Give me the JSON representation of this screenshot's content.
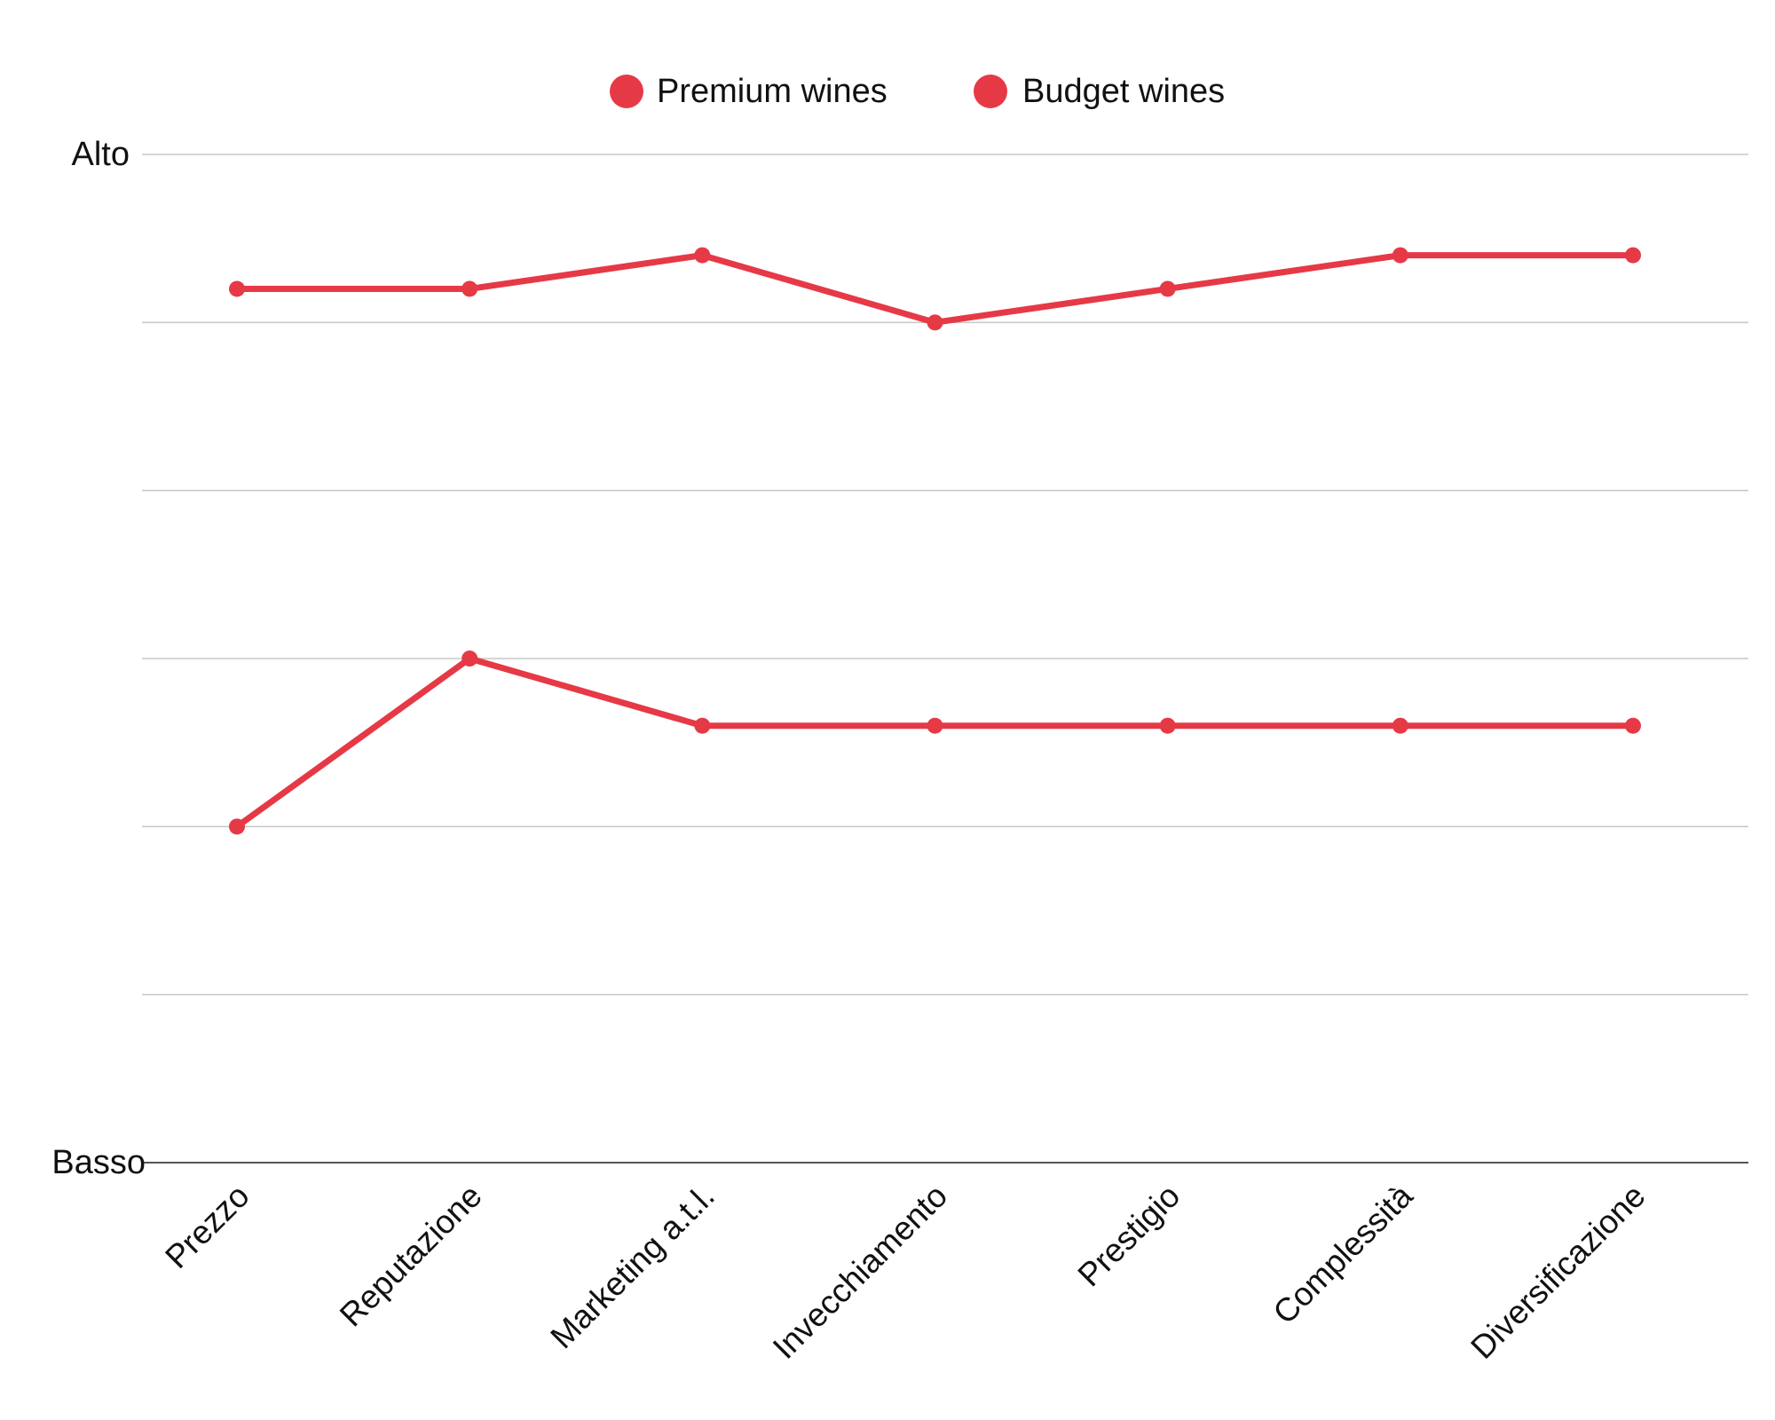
{
  "chart_data": {
    "type": "line",
    "title": "",
    "xlabel": "",
    "ylabel": "",
    "categories": [
      "Prezzo",
      "Reputazione",
      "Marketing a.t.l.",
      "Invecchiamento",
      "Prestigio",
      "Complessità",
      "Diversificazione"
    ],
    "ylim": [
      0,
      6
    ],
    "y_ticks": [
      0,
      1,
      2,
      3,
      4,
      5,
      6
    ],
    "y_tick_labels": {
      "top": "Alto",
      "bottom": "Basso"
    },
    "grid": true,
    "legend_position": "top-center",
    "series": [
      {
        "name": "Premium wines",
        "color": "#e63946",
        "values": [
          5.2,
          5.2,
          5.4,
          5.0,
          5.2,
          5.4,
          5.4
        ]
      },
      {
        "name": "Budget wines",
        "color": "#e63946",
        "values": [
          2.0,
          3.0,
          2.6,
          2.6,
          2.6,
          2.6,
          2.6
        ]
      }
    ]
  }
}
